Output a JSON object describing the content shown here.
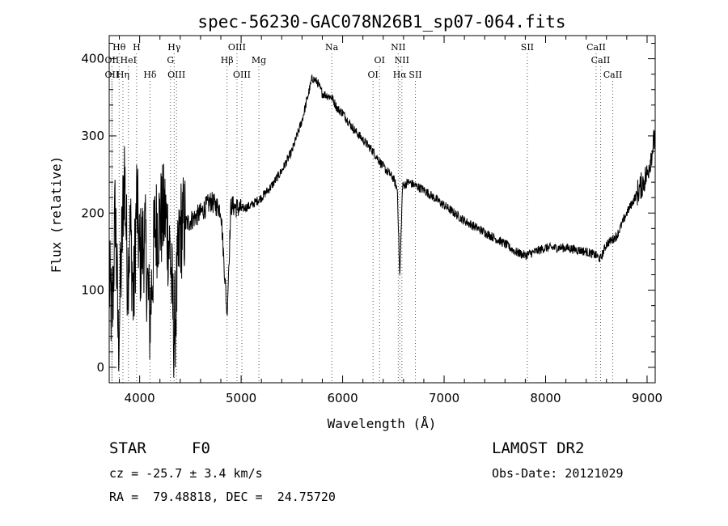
{
  "chart_data": {
    "type": "line",
    "title": "spec-56230-GAC078N26B1_sp07-064.fits",
    "xlabel": "Wavelength (Å)",
    "ylabel": "Flux (relative)",
    "xlim": [
      3700,
      9080
    ],
    "ylim": [
      -20,
      430
    ],
    "xticks": [
      4000,
      5000,
      6000,
      7000,
      8000,
      9000
    ],
    "yticks": [
      0,
      100,
      200,
      300,
      400
    ],
    "grid": false,
    "spectral_lines": [
      {
        "label": "Hθ",
        "wavelength": 3798,
        "row": 0
      },
      {
        "label": "H",
        "wavelength": 3970,
        "row": 0
      },
      {
        "label": "Hγ",
        "wavelength": 4340,
        "row": 0
      },
      {
        "label": "OIII",
        "wavelength": 4959,
        "row": 0
      },
      {
        "label": "Na",
        "wavelength": 5893,
        "row": 0
      },
      {
        "label": "NII",
        "wavelength": 6548,
        "row": 0
      },
      {
        "label": "SII",
        "wavelength": 7820,
        "row": 0
      },
      {
        "label": "CaII",
        "wavelength": 8498,
        "row": 0
      },
      {
        "label": "OII",
        "wavelength": 3727,
        "row": 1
      },
      {
        "label": "HeI",
        "wavelength": 3889,
        "row": 1
      },
      {
        "label": "G",
        "wavelength": 4304,
        "row": 1
      },
      {
        "label": "Hβ",
        "wavelength": 4861,
        "row": 1
      },
      {
        "label": "Mg",
        "wavelength": 5175,
        "row": 1
      },
      {
        "label": "OI",
        "wavelength": 6364,
        "row": 1
      },
      {
        "label": "NII",
        "wavelength": 6584,
        "row": 1
      },
      {
        "label": "CaII",
        "wavelength": 8542,
        "row": 1
      },
      {
        "label": "OII",
        "wavelength": 3727,
        "row": 2
      },
      {
        "label": "Hη",
        "wavelength": 3835,
        "row": 2
      },
      {
        "label": "Hδ",
        "wavelength": 4102,
        "row": 2
      },
      {
        "label": "OIII",
        "wavelength": 4363,
        "row": 2
      },
      {
        "label": "OIII",
        "wavelength": 5007,
        "row": 2
      },
      {
        "label": "OI",
        "wavelength": 6300,
        "row": 2
      },
      {
        "label": "Hα",
        "wavelength": 6563,
        "row": 2
      },
      {
        "label": "SII",
        "wavelength": 6717,
        "row": 2
      },
      {
        "label": "CaII",
        "wavelength": 8662,
        "row": 2
      }
    ],
    "series": [
      {
        "x": [
          3700,
          3730,
          3760,
          3790,
          3820,
          3850,
          3880,
          3910,
          3940,
          3970,
          4000,
          4050,
          4100,
          4150,
          4200,
          4250,
          4300,
          4340,
          4400,
          4500,
          4600,
          4700,
          4800,
          4861,
          4900,
          5000,
          5100,
          5200,
          5300,
          5400,
          5500,
          5600,
          5700,
          5750,
          5800,
          5893,
          5950,
          6000,
          6100,
          6200,
          6300,
          6400,
          6500,
          6540,
          6563,
          6590,
          6650,
          6800,
          7000,
          7200,
          7400,
          7600,
          7700,
          7800,
          7900,
          8000,
          8200,
          8400,
          8500,
          8540,
          8600,
          8700,
          8800,
          8900,
          9000,
          9080
        ],
        "y": [
          110,
          60,
          210,
          30,
          140,
          260,
          120,
          180,
          80,
          220,
          140,
          170,
          60,
          180,
          190,
          200,
          150,
          40,
          180,
          190,
          200,
          215,
          205,
          70,
          210,
          205,
          210,
          220,
          235,
          255,
          280,
          320,
          375,
          370,
          355,
          350,
          335,
          330,
          310,
          295,
          280,
          260,
          245,
          230,
          115,
          235,
          240,
          230,
          210,
          190,
          175,
          160,
          150,
          145,
          150,
          155,
          155,
          150,
          145,
          140,
          160,
          170,
          200,
          225,
          250,
          300
        ]
      }
    ]
  },
  "info": {
    "object_class": "STAR",
    "subclass": "F0",
    "survey": "LAMOST DR2",
    "cz": "cz = -25.7 ± 3.4 km/s",
    "obs_date": "Obs-Date: 20121029",
    "coords": "RA =  79.48818, DEC =  24.75720"
  }
}
